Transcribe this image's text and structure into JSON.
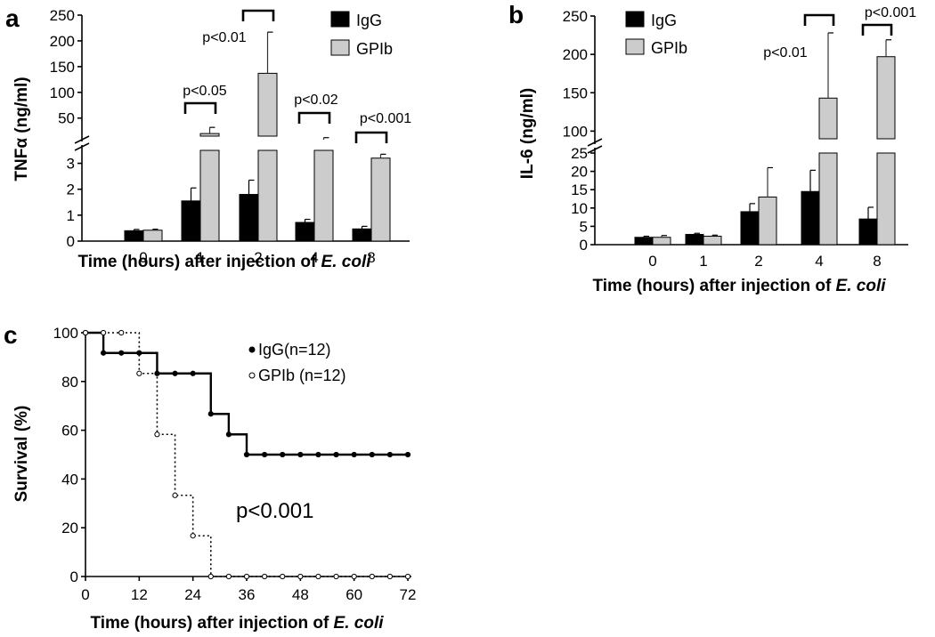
{
  "chart_data": [
    {
      "id": "a",
      "panel_label": "a",
      "type": "bar",
      "ylabel_pre": "TNF",
      "ylabel_greek": "α",
      "ylabel_post": " (ng/ml)",
      "xlabel_pre": "Time (hours) after injection of ",
      "xlabel_italic": "E. coli",
      "categories": [
        "0",
        "1",
        "2",
        "4",
        "8"
      ],
      "y_axis_broken": true,
      "y_lower_range": [
        0,
        3.5
      ],
      "y_lower_ticks": [
        0,
        1,
        2,
        3
      ],
      "y_upper_range": [
        15,
        250
      ],
      "y_upper_ticks": [
        50,
        100,
        150,
        200,
        250
      ],
      "series": [
        {
          "name": "IgG",
          "color": "#000000",
          "values": [
            0.4,
            1.55,
            1.8,
            0.72,
            0.47
          ],
          "errors": [
            0.05,
            0.5,
            0.55,
            0.12,
            0.1
          ]
        },
        {
          "name": "GPIb",
          "color": "#cccccc",
          "values": [
            0.42,
            20,
            137,
            8,
            3.2
          ],
          "errors": [
            0.04,
            12,
            80,
            4,
            0.15
          ]
        }
      ],
      "significance": [
        {
          "category": "1",
          "label": "p<0.05"
        },
        {
          "category": "2",
          "label": "p<0.01"
        },
        {
          "category": "4",
          "label": "p<0.02"
        },
        {
          "category": "8",
          "label": "p<0.001"
        }
      ],
      "legend_position": "top-right"
    },
    {
      "id": "b",
      "panel_label": "b",
      "type": "bar",
      "ylabel": "IL-6 (ng/ml)",
      "xlabel_pre": "Time (hours) after injection of ",
      "xlabel_italic": "E. coli",
      "categories": [
        "0",
        "1",
        "2",
        "4",
        "8"
      ],
      "y_axis_broken": true,
      "y_lower_range": [
        0,
        25
      ],
      "y_lower_ticks": [
        0,
        5,
        10,
        15,
        20,
        25
      ],
      "y_upper_range": [
        90,
        250
      ],
      "y_upper_ticks": [
        100,
        150,
        200,
        250
      ],
      "series": [
        {
          "name": "IgG",
          "color": "#000000",
          "values": [
            2,
            2.8,
            9,
            14.5,
            7
          ],
          "errors": [
            0.3,
            0.3,
            2.2,
            5.8,
            3.2
          ]
        },
        {
          "name": "GPIb",
          "color": "#cccccc",
          "values": [
            2,
            2.3,
            13,
            143,
            197
          ],
          "errors": [
            0.5,
            0.3,
            8,
            85,
            22
          ]
        }
      ],
      "significance": [
        {
          "category": "4",
          "label": "p<0.01"
        },
        {
          "category": "8",
          "label": "p<0.001"
        }
      ],
      "legend_position": "top-left"
    },
    {
      "id": "c",
      "panel_label": "c",
      "type": "line",
      "subtype": "survival-step",
      "ylabel": "Survival (%)",
      "xlabel_pre": "Time (hours) after injection of ",
      "xlabel_italic": "E. coli",
      "xlim": [
        0,
        72
      ],
      "ylim": [
        0,
        100
      ],
      "x_ticks": [
        0,
        12,
        24,
        36,
        48,
        60,
        72
      ],
      "y_ticks": [
        0,
        20,
        40,
        60,
        80,
        100
      ],
      "annotation": "p<0.001",
      "series": [
        {
          "name": "IgG(n=12)",
          "style": "solid, filled markers",
          "x": [
            0,
            4,
            8,
            12,
            16,
            20,
            24,
            28,
            32,
            36,
            40,
            44,
            48,
            52,
            56,
            60,
            64,
            68,
            72
          ],
          "y": [
            100,
            91.7,
            91.7,
            91.7,
            83.3,
            83.3,
            83.3,
            66.7,
            58.3,
            50,
            50,
            50,
            50,
            50,
            50,
            50,
            50,
            50,
            50
          ]
        },
        {
          "name": "GPIb (n=12)",
          "style": "dotted, open markers",
          "x": [
            0,
            4,
            8,
            12,
            16,
            20,
            24,
            28,
            32,
            36,
            40,
            44,
            48,
            52,
            56,
            60,
            64,
            68,
            72
          ],
          "y": [
            100,
            100,
            100,
            83.3,
            58.3,
            33.3,
            16.7,
            0,
            0,
            0,
            0,
            0,
            0,
            0,
            0,
            0,
            0,
            0,
            0
          ]
        }
      ],
      "legend_position": "top-right"
    }
  ]
}
